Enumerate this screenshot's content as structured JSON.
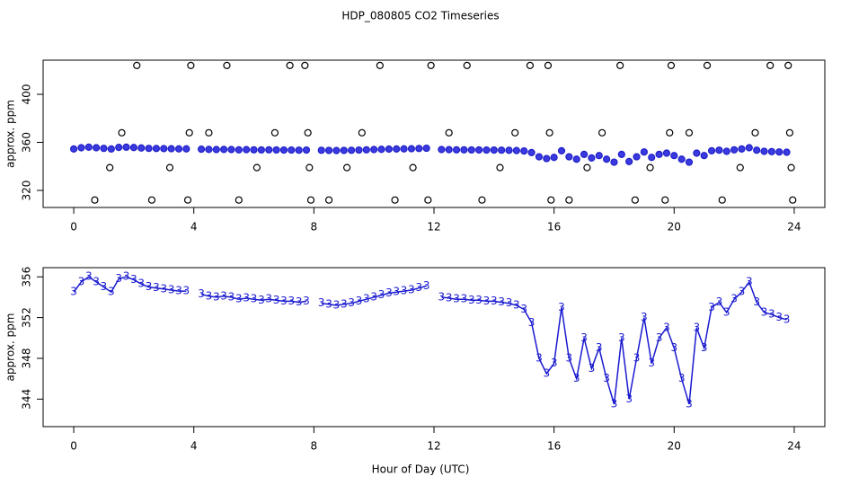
{
  "chart_data": [
    {
      "type": "scatter",
      "title": "HDP_080805  CO2 Timeseries",
      "ylabel": "approx. ppm",
      "xlim": [
        -1.02,
        25.02
      ],
      "xticks": [
        0,
        4,
        8,
        12,
        16,
        20,
        24
      ],
      "ylim": [
        305.8,
        428.4
      ],
      "yticks": [
        320,
        360,
        400
      ],
      "series": [
        {
          "color": "#2020c8",
          "fill": "#3a3ae0",
          "x": [
            0,
            0.25,
            0.5,
            0.75,
            1,
            1.25,
            1.5,
            1.75,
            2,
            2.25,
            2.5,
            2.75,
            3,
            3.25,
            3.5,
            3.75,
            4.25,
            4.5,
            4.75,
            5,
            5.25,
            5.5,
            5.75,
            6,
            6.25,
            6.5,
            6.75,
            7,
            7.25,
            7.5,
            7.75,
            8.25,
            8.5,
            8.75,
            9,
            9.25,
            9.5,
            9.75,
            10,
            10.25,
            10.5,
            10.75,
            11,
            11.25,
            11.5,
            11.75,
            12.25,
            12.5,
            12.75,
            13,
            13.25,
            13.5,
            13.75,
            14,
            14.25,
            14.5,
            14.75,
            15,
            15.25,
            15.5,
            15.75,
            16,
            16.25,
            16.5,
            16.75,
            17,
            17.25,
            17.5,
            17.75,
            18,
            18.25,
            18.5,
            18.75,
            19,
            19.25,
            19.5,
            19.75,
            20,
            20.25,
            20.5,
            20.75,
            21,
            21.25,
            21.5,
            21.75,
            22,
            22.25,
            22.5,
            22.75,
            23,
            23.25,
            23.5,
            23.75
          ],
          "values": [
            354.5,
            355.5,
            356,
            355.5,
            355,
            354.5,
            355.8,
            356,
            355.7,
            355.3,
            355,
            354.9,
            354.8,
            354.7,
            354.6,
            354.6,
            354.3,
            354.1,
            354,
            354.1,
            354,
            353.8,
            353.9,
            353.8,
            353.7,
            353.8,
            353.7,
            353.6,
            353.6,
            353.5,
            353.6,
            353.4,
            353.3,
            353.2,
            353.3,
            353.4,
            353.6,
            353.8,
            354,
            354.2,
            354.4,
            354.5,
            354.6,
            354.7,
            354.9,
            355.1,
            354,
            353.9,
            353.8,
            353.8,
            353.7,
            353.7,
            353.6,
            353.6,
            353.5,
            353.4,
            353.2,
            352.8,
            351.5,
            348,
            346.5,
            347.5,
            353,
            348,
            346,
            350,
            347,
            349,
            346,
            343.5,
            350,
            344,
            348,
            352,
            347.5,
            350,
            351,
            349,
            346,
            343.5,
            351,
            349,
            353,
            353.5,
            352.5,
            353.8,
            354.5,
            355.5,
            353.5,
            352.5,
            352.3,
            352,
            351.8
          ]
        },
        {
          "color": "#000000",
          "fill": "none",
          "x": [
            0.7,
            1.2,
            1.6,
            2.1,
            2.6,
            3.2,
            3.8,
            3.85,
            3.9,
            4.5,
            5.1,
            5.5,
            6.1,
            6.7,
            7.2,
            7.7,
            7.8,
            7.85,
            7.9,
            8.5,
            9.1,
            9.6,
            10.2,
            10.7,
            11.3,
            11.8,
            11.9,
            12.5,
            13.1,
            13.6,
            14.2,
            14.7,
            15.2,
            15.8,
            15.85,
            15.9,
            16.5,
            17.1,
            17.6,
            18.2,
            18.7,
            19.2,
            19.7,
            19.85,
            19.9,
            20.5,
            21.1,
            21.6,
            22.2,
            22.7,
            23.2,
            23.8,
            23.85,
            23.9,
            23.95
          ],
          "values": [
            312,
            339,
            368,
            424,
            312,
            339,
            312,
            368,
            424,
            368,
            424,
            312,
            339,
            368,
            424,
            424,
            368,
            339,
            312,
            312,
            339,
            368,
            424,
            312,
            339,
            312,
            424,
            368,
            424,
            312,
            339,
            368,
            424,
            424,
            368,
            312,
            312,
            339,
            368,
            424,
            312,
            339,
            312,
            368,
            424,
            368,
            424,
            312,
            339,
            368,
            424,
            424,
            368,
            339,
            312
          ]
        }
      ]
    },
    {
      "type": "line",
      "ylabel": "approx. ppm",
      "xlabel": "Hour of Day (UTC)",
      "xlim": [
        -1.02,
        25.02
      ],
      "xticks": [
        0,
        4,
        8,
        12,
        16,
        20,
        24
      ],
      "ylim": [
        341.3,
        356.9
      ],
      "yticks": [
        344,
        348,
        352,
        356
      ],
      "series": [
        {
          "name": "3",
          "color": "#1a1ad0",
          "x": [
            0,
            0.25,
            0.5,
            0.75,
            1,
            1.25,
            1.5,
            1.75,
            2,
            2.25,
            2.5,
            2.75,
            3,
            3.25,
            3.5,
            3.75,
            4,
            4.25,
            4.5,
            4.75,
            5,
            5.25,
            5.5,
            5.75,
            6,
            6.25,
            6.5,
            6.75,
            7,
            7.25,
            7.5,
            7.75,
            8,
            8.25,
            8.5,
            8.75,
            9,
            9.25,
            9.5,
            9.75,
            10,
            10.25,
            10.5,
            10.75,
            11,
            11.25,
            11.5,
            11.75,
            12,
            12.25,
            12.5,
            12.75,
            13,
            13.25,
            13.5,
            13.75,
            14,
            14.25,
            14.5,
            14.75,
            15,
            15.25,
            15.5,
            15.75,
            16,
            16.25,
            16.5,
            16.75,
            17,
            17.25,
            17.5,
            17.75,
            18,
            18.25,
            18.5,
            18.75,
            19,
            19.25,
            19.5,
            19.75,
            20,
            20.25,
            20.5,
            20.75,
            21,
            21.25,
            21.5,
            21.75,
            22,
            22.25,
            22.5,
            22.75,
            23,
            23.25,
            23.5,
            23.75
          ],
          "values": [
            354.5,
            355.5,
            356,
            355.5,
            355,
            354.5,
            355.8,
            356,
            355.7,
            355.3,
            355,
            354.9,
            354.8,
            354.7,
            354.6,
            354.6,
            null,
            354.3,
            354.1,
            354,
            354.1,
            354,
            353.8,
            353.9,
            353.8,
            353.7,
            353.8,
            353.7,
            353.6,
            353.6,
            353.5,
            353.6,
            null,
            353.4,
            353.3,
            353.2,
            353.3,
            353.4,
            353.6,
            353.8,
            354,
            354.2,
            354.4,
            354.5,
            354.6,
            354.7,
            354.9,
            355.1,
            null,
            354,
            353.9,
            353.8,
            353.8,
            353.7,
            353.7,
            353.6,
            353.6,
            353.5,
            353.4,
            353.2,
            352.8,
            351.5,
            348,
            346.5,
            347.5,
            353,
            348,
            346,
            350,
            347,
            349,
            346,
            343.5,
            350,
            344,
            348,
            352,
            347.5,
            350,
            351,
            349,
            346,
            343.5,
            351,
            349,
            353,
            353.5,
            352.5,
            353.8,
            354.5,
            355.5,
            353.5,
            352.5,
            352.3,
            352,
            351.8
          ]
        }
      ]
    }
  ]
}
